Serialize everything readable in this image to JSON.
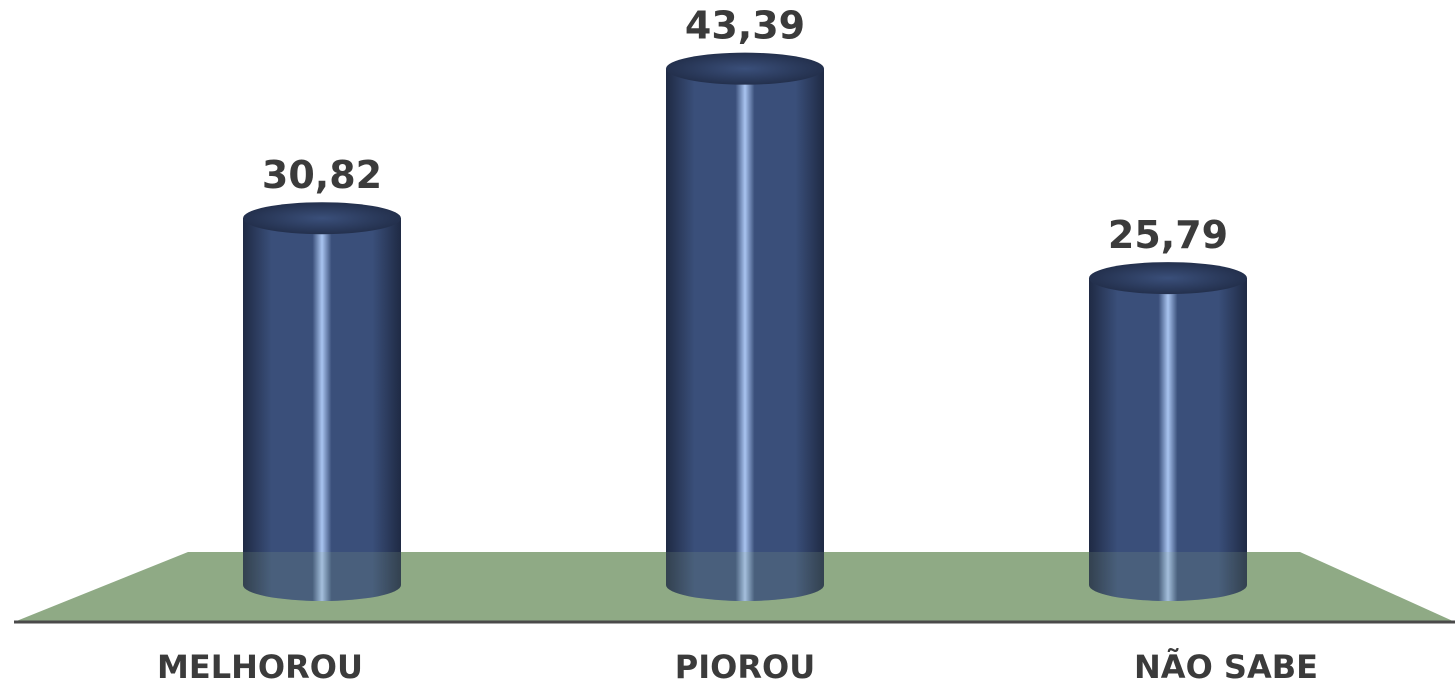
{
  "chart_data": {
    "type": "bar",
    "style": "3d-cylinder",
    "categories": [
      "MELHOROU",
      "PIOROU",
      "NÃO SABE"
    ],
    "values": [
      30.82,
      43.39,
      25.79
    ],
    "value_labels": [
      "30,82",
      "43,39",
      "25,79"
    ],
    "title": "",
    "xlabel": "",
    "ylabel": "",
    "ylim": [
      0,
      50
    ],
    "grid": false,
    "legend": "none",
    "colors": {
      "bar": "#3a4f7a",
      "bar_dark": "#1f2a44",
      "bar_highlight": "#a9c4f0",
      "floor": "#8faa85",
      "floor_edge": "#4a4a4a",
      "text": "#3b3b3b"
    }
  }
}
